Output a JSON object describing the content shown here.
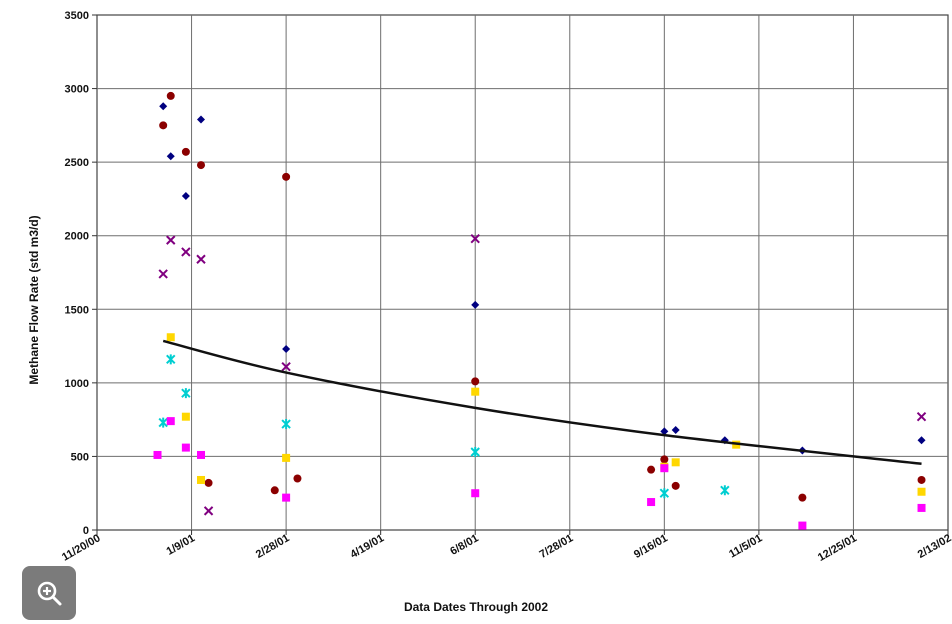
{
  "chart_data": {
    "type": "scatter",
    "title": "",
    "xlabel": "Data Dates Through 2002",
    "ylabel": "Methane Flow Rate (std m3/d)",
    "xlim": [
      "2000-11-20",
      "2002-02-13"
    ],
    "ylim": [
      0,
      3500
    ],
    "x_ticks": [
      "11/20/00",
      "1/9/01",
      "2/28/01",
      "4/19/01",
      "6/8/01",
      "7/28/01",
      "9/16/01",
      "11/5/01",
      "12/25/01",
      "2/13/02"
    ],
    "y_ticks": [
      0,
      500,
      1000,
      1500,
      2000,
      2500,
      3000,
      3500
    ],
    "grid": true,
    "trendline": {
      "type": "exponential",
      "color": "#111111",
      "x": [
        "2000-12-25",
        "2001-02-28",
        "2001-06-08",
        "2001-09-16",
        "2002-01-30"
      ],
      "y": [
        1285,
        1070,
        830,
        645,
        450
      ]
    },
    "series": [
      {
        "color": "#000080",
        "marker": "diamond",
        "x": [
          "2000-12-25",
          "2000-12-29",
          "2001-01-06",
          "2001-01-14",
          "2001-02-28",
          "2001-06-08",
          "2001-09-16",
          "2001-09-22",
          "2001-10-18",
          "2001-11-28",
          "2002-01-30"
        ],
        "y": [
          2880,
          2540,
          2270,
          2790,
          1230,
          1530,
          670,
          680,
          610,
          540,
          610
        ]
      },
      {
        "color": "#8B0000",
        "marker": "circle",
        "x": [
          "2000-12-25",
          "2000-12-29",
          "2001-01-06",
          "2001-01-14",
          "2001-01-18",
          "2001-02-22",
          "2001-02-28",
          "2001-03-06",
          "2001-06-08",
          "2001-09-09",
          "2001-09-16",
          "2001-09-22",
          "2001-11-28",
          "2002-01-30"
        ],
        "y": [
          2750,
          2950,
          2570,
          2480,
          320,
          270,
          2400,
          350,
          1010,
          410,
          480,
          300,
          220,
          340
        ]
      },
      {
        "color": "#800080",
        "marker": "x",
        "x": [
          "2000-12-25",
          "2000-12-29",
          "2001-01-06",
          "2001-01-14",
          "2001-01-18",
          "2001-02-28",
          "2001-06-08",
          "2002-01-30"
        ],
        "y": [
          1740,
          1970,
          1890,
          1840,
          130,
          1110,
          1980,
          770
        ]
      },
      {
        "color": "#FFD700",
        "marker": "square",
        "x": [
          "2000-12-29",
          "2001-01-06",
          "2001-01-14",
          "2001-02-28",
          "2001-06-08",
          "2001-09-16",
          "2001-09-22",
          "2001-10-24",
          "2002-01-30"
        ],
        "y": [
          1310,
          770,
          340,
          490,
          940,
          430,
          460,
          580,
          260
        ]
      },
      {
        "color": "#00CED1",
        "marker": "asterisk",
        "x": [
          "2000-12-25",
          "2000-12-29",
          "2001-01-06",
          "2001-02-28",
          "2001-06-08",
          "2001-09-16",
          "2001-10-18"
        ],
        "y": [
          730,
          1160,
          930,
          720,
          530,
          250,
          270
        ]
      },
      {
        "color": "#FF00FF",
        "marker": "square",
        "x": [
          "2000-12-22",
          "2000-12-29",
          "2001-01-06",
          "2001-01-14",
          "2001-02-28",
          "2001-06-08",
          "2001-09-09",
          "2001-09-16",
          "2001-11-28",
          "2002-01-30"
        ],
        "y": [
          510,
          740,
          560,
          510,
          220,
          250,
          190,
          420,
          30,
          150
        ]
      }
    ]
  }
}
